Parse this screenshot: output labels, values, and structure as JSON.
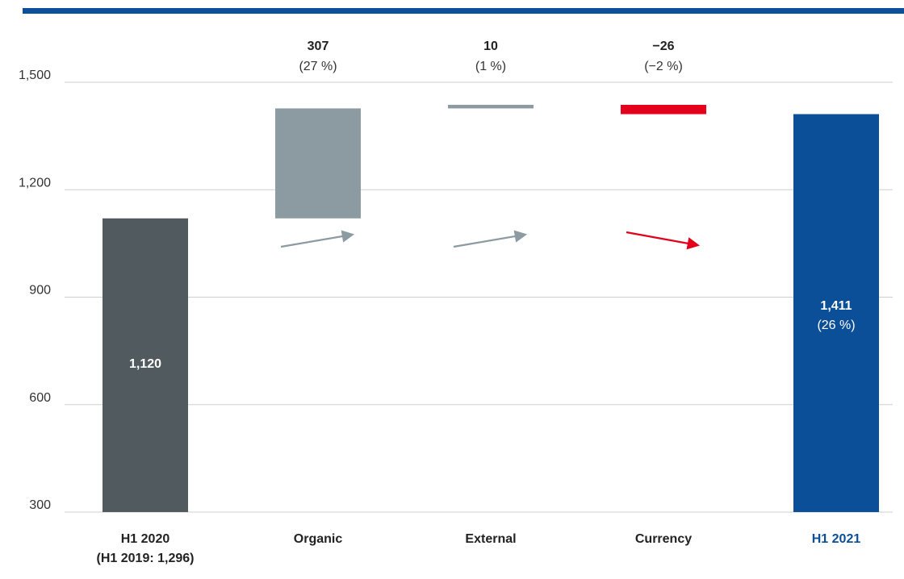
{
  "colors": {
    "accent_bar": "#0a4f97",
    "start_bar": "#505a5f",
    "increase": "#8c9aa2",
    "decrease": "#e2001a",
    "end_bar": "#0a4f97",
    "grid": "#cfcfcf",
    "axis_text": "#333333"
  },
  "chart_data": {
    "type": "bar",
    "subtype": "waterfall",
    "title": "",
    "xlabel": "",
    "ylabel": "",
    "ylim": [
      300,
      1500
    ],
    "yticks": [
      300,
      600,
      900,
      1200,
      1500
    ],
    "ytick_labels": [
      "300",
      "600",
      "900",
      "1,200",
      "1,500"
    ],
    "grid": true,
    "legend": "none",
    "steps": [
      {
        "category": "H1 2020",
        "category_sub": "(H1 2019: 1,296)",
        "kind": "total",
        "value": 1120,
        "value_label": "1,120",
        "pct_label": ""
      },
      {
        "category": "Organic",
        "category_sub": "",
        "kind": "delta",
        "value": 307,
        "value_label": "307",
        "pct_label": "(27 %)",
        "arrow": "up"
      },
      {
        "category": "External",
        "category_sub": "",
        "kind": "delta",
        "value": 10,
        "value_label": "10",
        "pct_label": "(1 %)",
        "arrow": "up"
      },
      {
        "category": "Currency",
        "category_sub": "",
        "kind": "delta",
        "value": -26,
        "value_label": "−26",
        "pct_label": "(−2 %)",
        "arrow": "down"
      },
      {
        "category": "H1 2021",
        "category_sub": "",
        "kind": "total",
        "value": 1411,
        "value_label": "1,411",
        "pct_label": "(26 %)"
      }
    ]
  }
}
